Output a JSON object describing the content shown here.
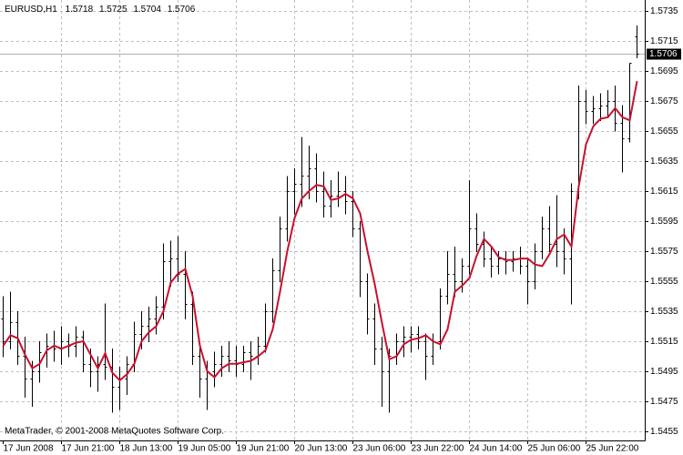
{
  "chart_data": {
    "type": "ohlc",
    "symbol": "EURUSD,H1",
    "footer": "MetaTrader, © 2001-2008 MetaQuotes Software Corp.",
    "ylim": [
      1.5449,
      1.5742
    ],
    "yticks": [
      1.5735,
      1.5715,
      1.5695,
      1.5675,
      1.5655,
      1.5635,
      1.5615,
      1.5595,
      1.5575,
      1.5555,
      1.5535,
      1.5515,
      1.5495,
      1.5475,
      1.5455
    ],
    "xticks": [
      {
        "value": 0,
        "label": "17 Jun 2008"
      },
      {
        "value": 8,
        "label": "17 Jun 21:00"
      },
      {
        "value": 16,
        "label": "18 Jun 13:00"
      },
      {
        "value": 24,
        "label": "19 Jun 05:00"
      },
      {
        "value": 32,
        "label": "19 Jun 21:00"
      },
      {
        "value": 40,
        "label": "20 Jun 13:00"
      },
      {
        "value": 48,
        "label": "23 Jun 06:00"
      },
      {
        "value": 56,
        "label": "23 Jun 22:00"
      },
      {
        "value": 64,
        "label": "24 Jun 14:00"
      },
      {
        "value": 72,
        "label": "25 Jun 06:00"
      },
      {
        "value": 80,
        "label": "25 Jun 22:00"
      }
    ],
    "grid": true,
    "bar_color": "#000000",
    "open": [
      1.553,
      1.5515,
      1.5528,
      1.5505,
      1.549,
      1.5495,
      1.5508,
      1.5512,
      1.551,
      1.5515,
      1.5512,
      1.5518,
      1.55,
      1.5495,
      1.55,
      1.5498,
      1.5485,
      1.549,
      1.55,
      1.552,
      1.5525,
      1.553,
      1.5538,
      1.5568,
      1.557,
      1.556,
      1.554,
      1.5505,
      1.549,
      1.5495,
      1.55,
      1.5505,
      1.5502,
      1.55,
      1.5508,
      1.5505,
      1.5512,
      1.5535,
      1.5562,
      1.559,
      1.5615,
      1.562,
      1.5625,
      1.563,
      1.5615,
      1.5605,
      1.5612,
      1.5615,
      1.5608,
      1.559,
      1.5555,
      1.553,
      1.551,
      1.5495,
      1.5505,
      1.5515,
      1.5518,
      1.552,
      1.5515,
      1.5505,
      1.5515,
      1.5545,
      1.556,
      1.5555,
      1.5565,
      1.559,
      1.558,
      1.557,
      1.5565,
      1.557,
      1.5568,
      1.557,
      1.5565,
      1.5555,
      1.5575,
      1.559,
      1.558,
      1.5575,
      1.557,
      1.5615,
      1.5675,
      1.5668,
      1.567,
      1.5672,
      1.5675,
      1.566,
      1.565,
      1.5718
    ],
    "high": [
      1.5545,
      1.5548,
      1.5535,
      1.5518,
      1.5502,
      1.5515,
      1.552,
      1.5522,
      1.5525,
      1.552,
      1.5525,
      1.5522,
      1.551,
      1.5505,
      1.554,
      1.551,
      1.5498,
      1.5505,
      1.5528,
      1.5535,
      1.5538,
      1.5545,
      1.558,
      1.5582,
      1.5585,
      1.5575,
      1.5548,
      1.5512,
      1.5502,
      1.5508,
      1.5512,
      1.5515,
      1.5512,
      1.5512,
      1.5515,
      1.5518,
      1.554,
      1.557,
      1.5598,
      1.5625,
      1.563,
      1.5651,
      1.5645,
      1.564,
      1.5628,
      1.5622,
      1.5628,
      1.5625,
      1.5615,
      1.5595,
      1.556,
      1.554,
      1.5518,
      1.551,
      1.552,
      1.5525,
      1.5525,
      1.5525,
      1.552,
      1.552,
      1.555,
      1.5575,
      1.5578,
      1.557,
      1.5622,
      1.56,
      1.5588,
      1.5578,
      1.5575,
      1.5575,
      1.5575,
      1.5578,
      1.557,
      1.558,
      1.5598,
      1.5605,
      1.5612,
      1.559,
      1.562,
      1.5685,
      1.5682,
      1.5678,
      1.568,
      1.5682,
      1.5685,
      1.5672,
      1.57,
      1.5725
    ],
    "low": [
      1.5505,
      1.551,
      1.55,
      1.5478,
      1.5472,
      1.5488,
      1.5498,
      1.5502,
      1.55,
      1.5505,
      1.5505,
      1.5495,
      1.5485,
      1.5482,
      1.549,
      1.5468,
      1.547,
      1.548,
      1.5495,
      1.551,
      1.5515,
      1.552,
      1.553,
      1.5552,
      1.5555,
      1.553,
      1.55,
      1.5478,
      1.547,
      1.5485,
      1.5492,
      1.5495,
      1.5492,
      1.5495,
      1.549,
      1.55,
      1.5508,
      1.5528,
      1.5555,
      1.5582,
      1.56,
      1.5605,
      1.561,
      1.5608,
      1.5598,
      1.5598,
      1.5605,
      1.56,
      1.5585,
      1.5545,
      1.552,
      1.55,
      1.5472,
      1.5468,
      1.55,
      1.5505,
      1.5508,
      1.551,
      1.549,
      1.55,
      1.551,
      1.554,
      1.5545,
      1.5548,
      1.556,
      1.5575,
      1.5565,
      1.5558,
      1.556,
      1.556,
      1.5562,
      1.556,
      1.554,
      1.555,
      1.557,
      1.5575,
      1.5565,
      1.556,
      1.554,
      1.561,
      1.566,
      1.566,
      1.5662,
      1.5665,
      1.5655,
      1.5628,
      1.5648,
      1.5704
    ],
    "close": [
      1.5515,
      1.5528,
      1.5505,
      1.549,
      1.5495,
      1.5508,
      1.5512,
      1.551,
      1.5515,
      1.5512,
      1.5518,
      1.55,
      1.5495,
      1.55,
      1.5498,
      1.5485,
      1.549,
      1.55,
      1.552,
      1.5525,
      1.553,
      1.5538,
      1.5568,
      1.557,
      1.556,
      1.554,
      1.5505,
      1.549,
      1.5495,
      1.55,
      1.5505,
      1.5502,
      1.55,
      1.5508,
      1.5505,
      1.5512,
      1.5535,
      1.5562,
      1.559,
      1.5615,
      1.562,
      1.5625,
      1.563,
      1.5615,
      1.5605,
      1.5612,
      1.5615,
      1.5608,
      1.559,
      1.5555,
      1.553,
      1.551,
      1.5495,
      1.5505,
      1.5515,
      1.5518,
      1.552,
      1.5515,
      1.5505,
      1.5515,
      1.5545,
      1.556,
      1.5555,
      1.5565,
      1.559,
      1.558,
      1.557,
      1.5565,
      1.557,
      1.5568,
      1.557,
      1.5565,
      1.5555,
      1.5575,
      1.559,
      1.558,
      1.5575,
      1.557,
      1.5615,
      1.5675,
      1.5668,
      1.567,
      1.5672,
      1.5675,
      1.566,
      1.565,
      1.57,
      1.5706
    ],
    "ma": {
      "color": "#c8102e",
      "values": [
        1.5512,
        1.5519,
        1.5517,
        1.5506,
        1.5497,
        1.55,
        1.5509,
        1.5512,
        1.551,
        1.5512,
        1.5514,
        1.5515,
        1.5506,
        1.5497,
        1.5507,
        1.5494,
        1.5489,
        1.5493,
        1.55,
        1.5515,
        1.5521,
        1.5525,
        1.5535,
        1.5554,
        1.556,
        1.5563,
        1.5545,
        1.5512,
        1.5495,
        1.5491,
        1.5497,
        1.55,
        1.55,
        1.5501,
        1.5502,
        1.5505,
        1.5509,
        1.5523,
        1.5548,
        1.5575,
        1.5597,
        1.561,
        1.5615,
        1.5619,
        1.5618,
        1.5609,
        1.561,
        1.5613,
        1.561,
        1.56,
        1.5575,
        1.5553,
        1.5527,
        1.5503,
        1.5505,
        1.5513,
        1.5516,
        1.5517,
        1.5519,
        1.5515,
        1.5513,
        1.5523,
        1.5548,
        1.5552,
        1.5557,
        1.5572,
        1.5583,
        1.5578,
        1.5571,
        1.5569,
        1.5569,
        1.557,
        1.557,
        1.5566,
        1.5565,
        1.5573,
        1.5583,
        1.5586,
        1.5578,
        1.5618,
        1.5646,
        1.5658,
        1.5663,
        1.5664,
        1.567,
        1.5664,
        1.5662,
        1.5688
      ]
    }
  }
}
